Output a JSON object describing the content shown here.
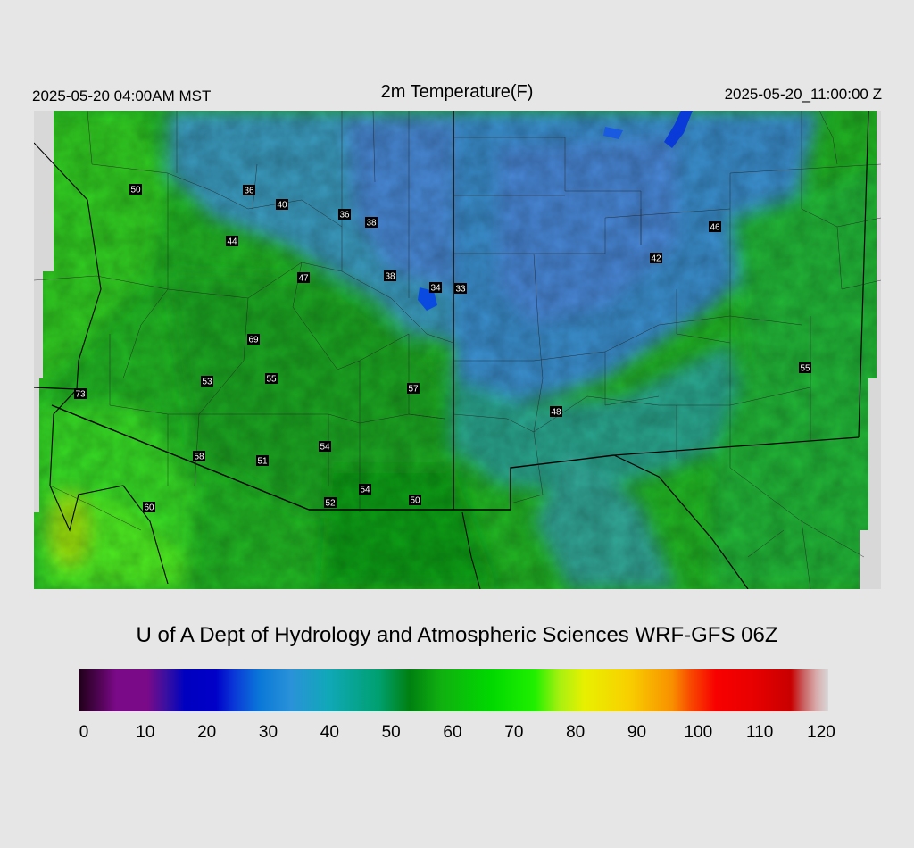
{
  "header": {
    "local_time": "2025-05-20 04:00AM MST",
    "title": "2m Temperature(F)",
    "utc_time": "2025-05-20_11:00:00 Z"
  },
  "stations": [
    {
      "label": "50"
    },
    {
      "label": "36"
    },
    {
      "label": "40"
    },
    {
      "label": "36"
    },
    {
      "label": "38"
    },
    {
      "label": "44"
    },
    {
      "label": "47"
    },
    {
      "label": "38"
    },
    {
      "label": "34"
    },
    {
      "label": "33"
    },
    {
      "label": "46"
    },
    {
      "label": "42"
    },
    {
      "label": "69"
    },
    {
      "label": "53"
    },
    {
      "label": "55"
    },
    {
      "label": "57"
    },
    {
      "label": "73"
    },
    {
      "label": "55"
    },
    {
      "label": "48"
    },
    {
      "label": "54"
    },
    {
      "label": "58"
    },
    {
      "label": "51"
    },
    {
      "label": "54"
    },
    {
      "label": "52"
    },
    {
      "label": "50"
    },
    {
      "label": "60"
    }
  ],
  "credit": "U of A Dept of Hydrology and Atmospheric Sciences WRF-GFS 06Z",
  "colorbar": {
    "min": 0,
    "max": 120,
    "tick_labels": [
      "0",
      "10",
      "20",
      "30",
      "40",
      "50",
      "60",
      "70",
      "80",
      "90",
      "100",
      "110",
      "120"
    ],
    "stops": [
      {
        "v": 0,
        "c": "#200018"
      },
      {
        "v": 4,
        "c": "#5a0560"
      },
      {
        "v": 6,
        "c": "#7a0a88"
      },
      {
        "v": 11,
        "c": "#7a0a88"
      },
      {
        "v": 14,
        "c": "#3a10a0"
      },
      {
        "v": 17,
        "c": "#0000c0"
      },
      {
        "v": 22,
        "c": "#0000c8"
      },
      {
        "v": 25,
        "c": "#0a3ad8"
      },
      {
        "v": 29,
        "c": "#0a78d8"
      },
      {
        "v": 34,
        "c": "#2a92d8"
      },
      {
        "v": 40,
        "c": "#10a8b8"
      },
      {
        "v": 48,
        "c": "#00a070"
      },
      {
        "v": 53,
        "c": "#008010"
      },
      {
        "v": 58,
        "c": "#10b010"
      },
      {
        "v": 66,
        "c": "#00d800"
      },
      {
        "v": 73,
        "c": "#20f000"
      },
      {
        "v": 77,
        "c": "#a8f010"
      },
      {
        "v": 81,
        "c": "#e8f000"
      },
      {
        "v": 88,
        "c": "#f8d000"
      },
      {
        "v": 95,
        "c": "#f89000"
      },
      {
        "v": 98,
        "c": "#f84800"
      },
      {
        "v": 102,
        "c": "#f80000"
      },
      {
        "v": 108,
        "c": "#e80000"
      },
      {
        "v": 114,
        "c": "#c80000"
      },
      {
        "v": 116,
        "c": "#c86060"
      },
      {
        "v": 118,
        "c": "#d8a8a8"
      },
      {
        "v": 120,
        "c": "#d8d8d8"
      }
    ]
  }
}
